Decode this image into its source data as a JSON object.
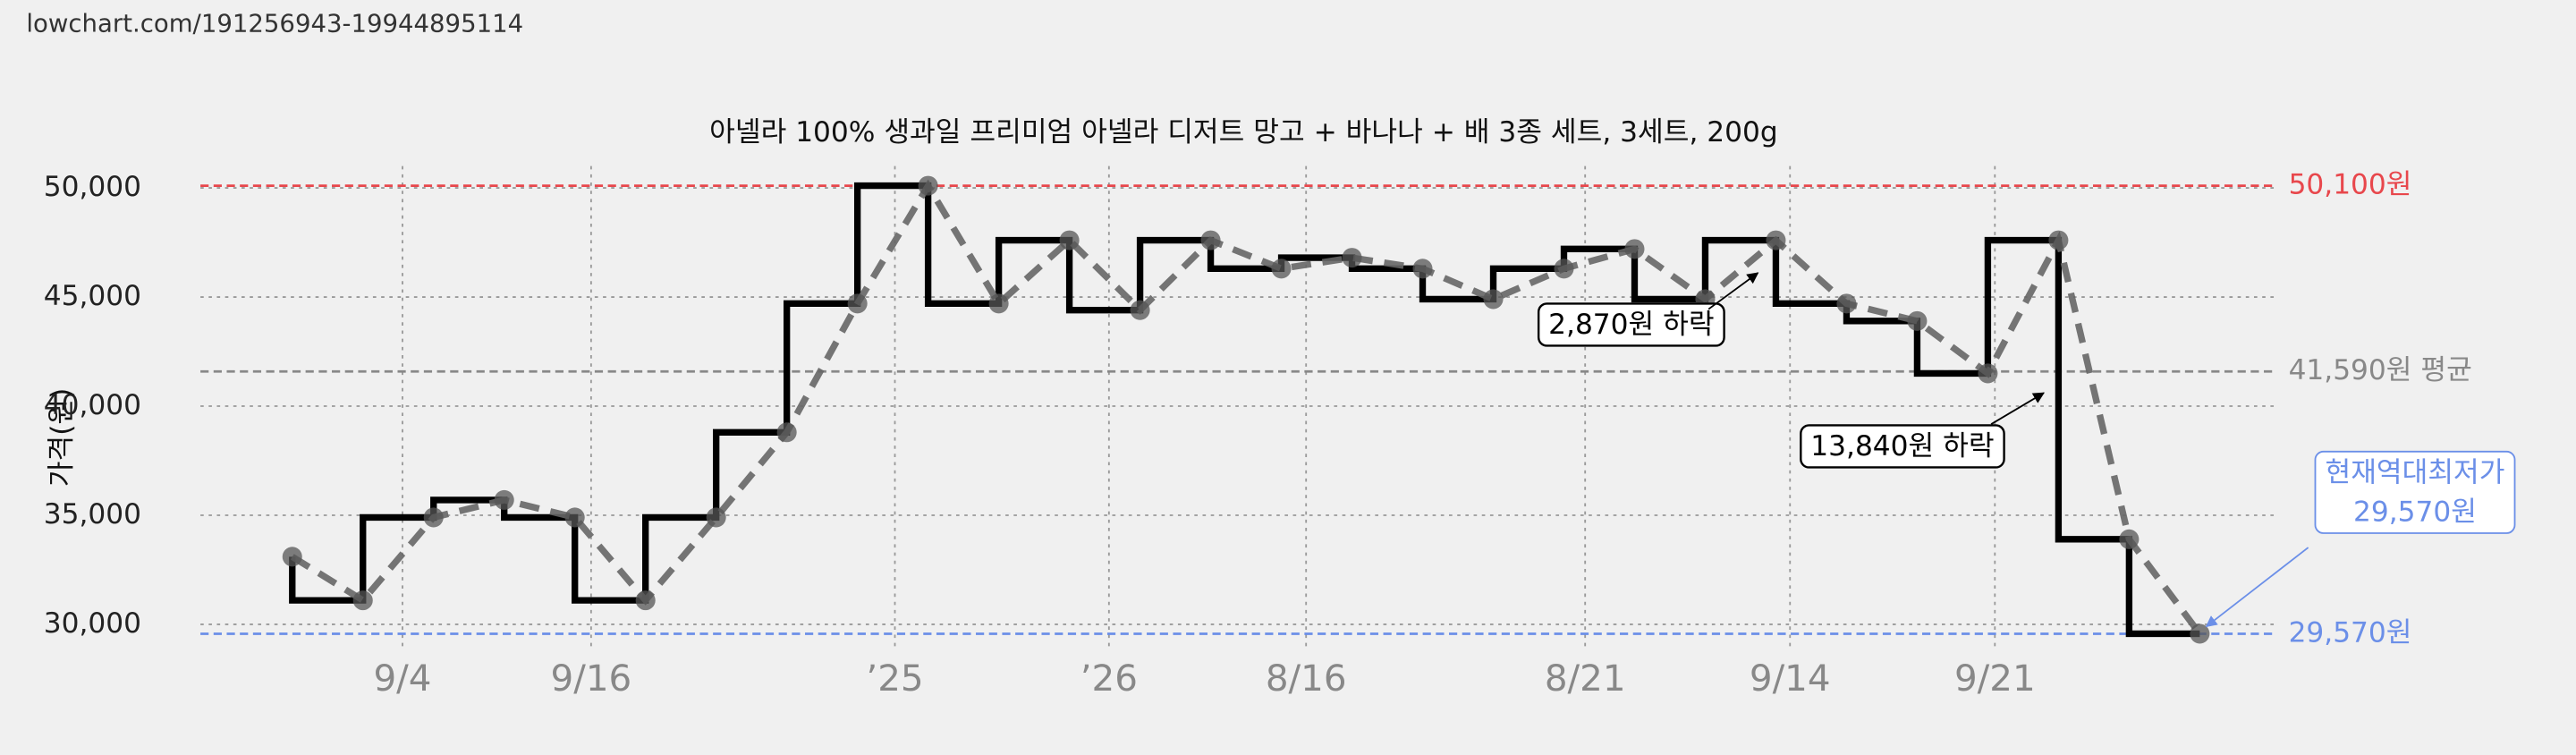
{
  "chart_data": {
    "type": "line",
    "url": "lowchart.com/191256943-19944895114",
    "title": "아넬라 100% 생과일 프리미엄 아넬라 디저트 망고 + 바나나 + 배 3종 세트, 3세트, 200g",
    "y_label": "가격(원)",
    "x": [
      0,
      1,
      2,
      3,
      4,
      5,
      6,
      7,
      8,
      9,
      10,
      11,
      12,
      13,
      14,
      15,
      16,
      17,
      18,
      19,
      20,
      21,
      22,
      23,
      24,
      25,
      26,
      27
    ],
    "values": [
      33100,
      31100,
      34900,
      35700,
      34900,
      31100,
      34900,
      38800,
      44700,
      50100,
      44700,
      47600,
      44400,
      47600,
      46300,
      46800,
      46300,
      44900,
      46300,
      47200,
      44900,
      47600,
      44700,
      43900,
      41500,
      47600,
      33900,
      29570
    ],
    "step_color": "#000000",
    "line_color": "#666666",
    "xlim": [
      -1.3,
      28.07
    ],
    "xticks": [
      {
        "value": 1.56,
        "label": "9/4"
      },
      {
        "value": 4.23,
        "label": "9/16"
      },
      {
        "value": 8.53,
        "label": "’25"
      },
      {
        "value": 11.56,
        "label": "’26"
      },
      {
        "value": 14.35,
        "label": "8/16"
      },
      {
        "value": 18.3,
        "label": "8/21"
      },
      {
        "value": 21.2,
        "label": "9/14"
      },
      {
        "value": 24.1,
        "label": "9/21"
      }
    ],
    "ylim": [
      29000,
      51000
    ],
    "yticks": [
      {
        "value": 30000,
        "label": "30,000"
      },
      {
        "value": 35000,
        "label": "35,000"
      },
      {
        "value": 40000,
        "label": "40,000"
      },
      {
        "value": 45000,
        "label": "45,000"
      },
      {
        "value": 50000,
        "label": "50,000"
      }
    ],
    "grid": true,
    "reference_lines": [
      {
        "value": 50100,
        "label": "50,100원",
        "color": "#e8474c"
      },
      {
        "value": 41590,
        "label": "41,590원 평균",
        "color": "#888888"
      },
      {
        "value": 29570,
        "label": "29,570원",
        "color": "#6b8fe8"
      }
    ],
    "annotations": [
      {
        "lines": [
          "2,870원 하락"
        ],
        "color": "#000000"
      },
      {
        "lines": [
          "13,840원 하락"
        ],
        "color": "#000000"
      },
      {
        "lines": [
          "현재역대최저가",
          "29,570원"
        ],
        "color": "#6b8fe8"
      }
    ]
  }
}
